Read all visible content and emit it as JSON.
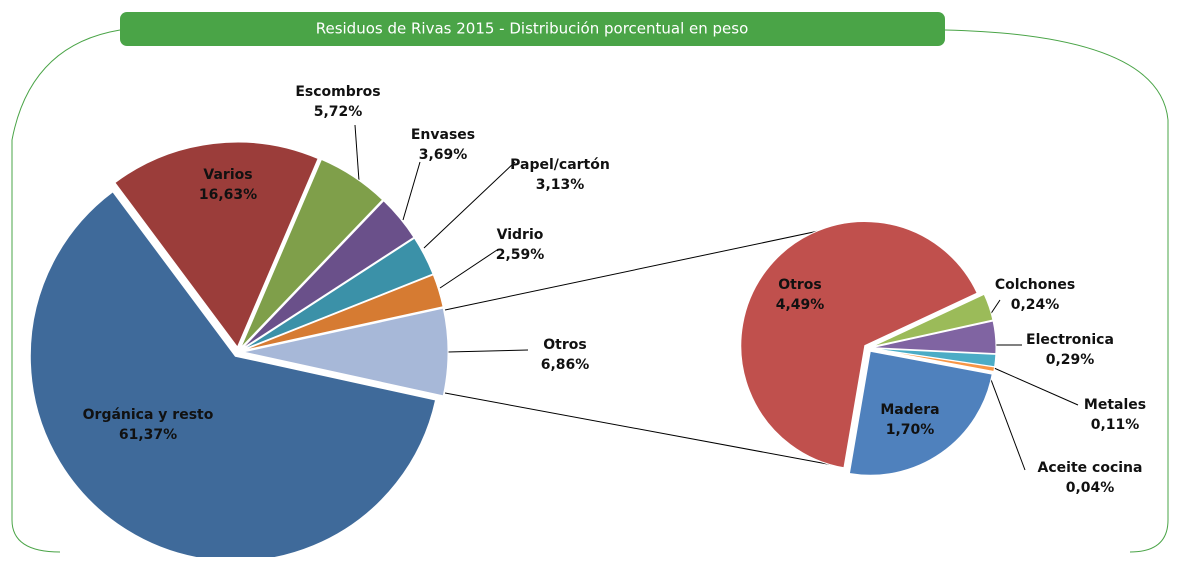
{
  "chart_data": [
    {
      "type": "pie",
      "title": "Residuos de Rivas 2015 - Distribución porcentual en peso",
      "categories": [
        "Orgánica y resto",
        "Varios",
        "Escombros",
        "Envases",
        "Papel/cartón",
        "Vidrio",
        "Otros"
      ],
      "values": [
        61.37,
        16.63,
        5.72,
        3.69,
        3.13,
        2.59,
        6.86
      ],
      "value_labels": [
        "61,37%",
        "16,63%",
        "5,72%",
        "3,69%",
        "3,13%",
        "2,59%",
        "6,86%"
      ],
      "colors": [
        "#3f6a9a",
        "#9b3d3a",
        "#7f9f4a",
        "#6a508a",
        "#3b91a8",
        "#d67b32",
        "#a7b8d8"
      ]
    },
    {
      "type": "pie",
      "categories": [
        "Otros",
        "Colchones",
        "Electronica",
        "Metales",
        "Aceite cocina",
        "Madera"
      ],
      "values": [
        4.49,
        0.24,
        0.29,
        0.11,
        0.04,
        1.7
      ],
      "value_labels": [
        "4,49%",
        "0,24%",
        "0,29%",
        "0,11%",
        "0,04%",
        "1,70%"
      ],
      "colors": [
        "#c0504d",
        "#9bbb59",
        "#8064a2",
        "#4bacc6",
        "#f79646",
        "#4f81bd"
      ]
    }
  ]
}
